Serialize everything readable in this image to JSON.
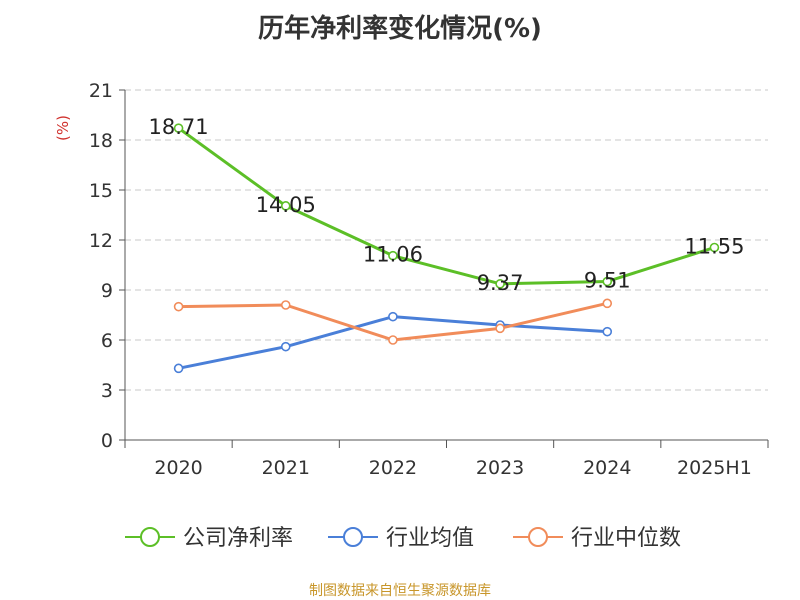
{
  "chart_data": {
    "type": "line",
    "title": "历年净利率变化情况(%)",
    "ylabel": "(%)",
    "categories": [
      "2020",
      "2021",
      "2022",
      "2023",
      "2024",
      "2025H1"
    ],
    "ylim": [
      0,
      21
    ],
    "yticks": [
      0,
      3,
      6,
      9,
      12,
      15,
      18,
      21
    ],
    "grid": true,
    "legend_position": "bottom",
    "series": [
      {
        "name": "公司净利率",
        "color": "#5cbf27",
        "values": [
          18.71,
          14.05,
          11.06,
          9.37,
          9.51,
          11.55
        ],
        "labels": [
          "18.71",
          "14.05",
          "11.06",
          "9.37",
          "9.51",
          "11.55"
        ]
      },
      {
        "name": "行业均值",
        "color": "#4a7fd8",
        "values": [
          4.3,
          5.6,
          7.4,
          6.9,
          6.5,
          null
        ]
      },
      {
        "name": "行业中位数",
        "color": "#f18c5a",
        "values": [
          8.0,
          8.1,
          6.0,
          6.7,
          8.2,
          null
        ]
      }
    ]
  },
  "footer": {
    "source": "制图数据来自恒生聚源数据库"
  }
}
